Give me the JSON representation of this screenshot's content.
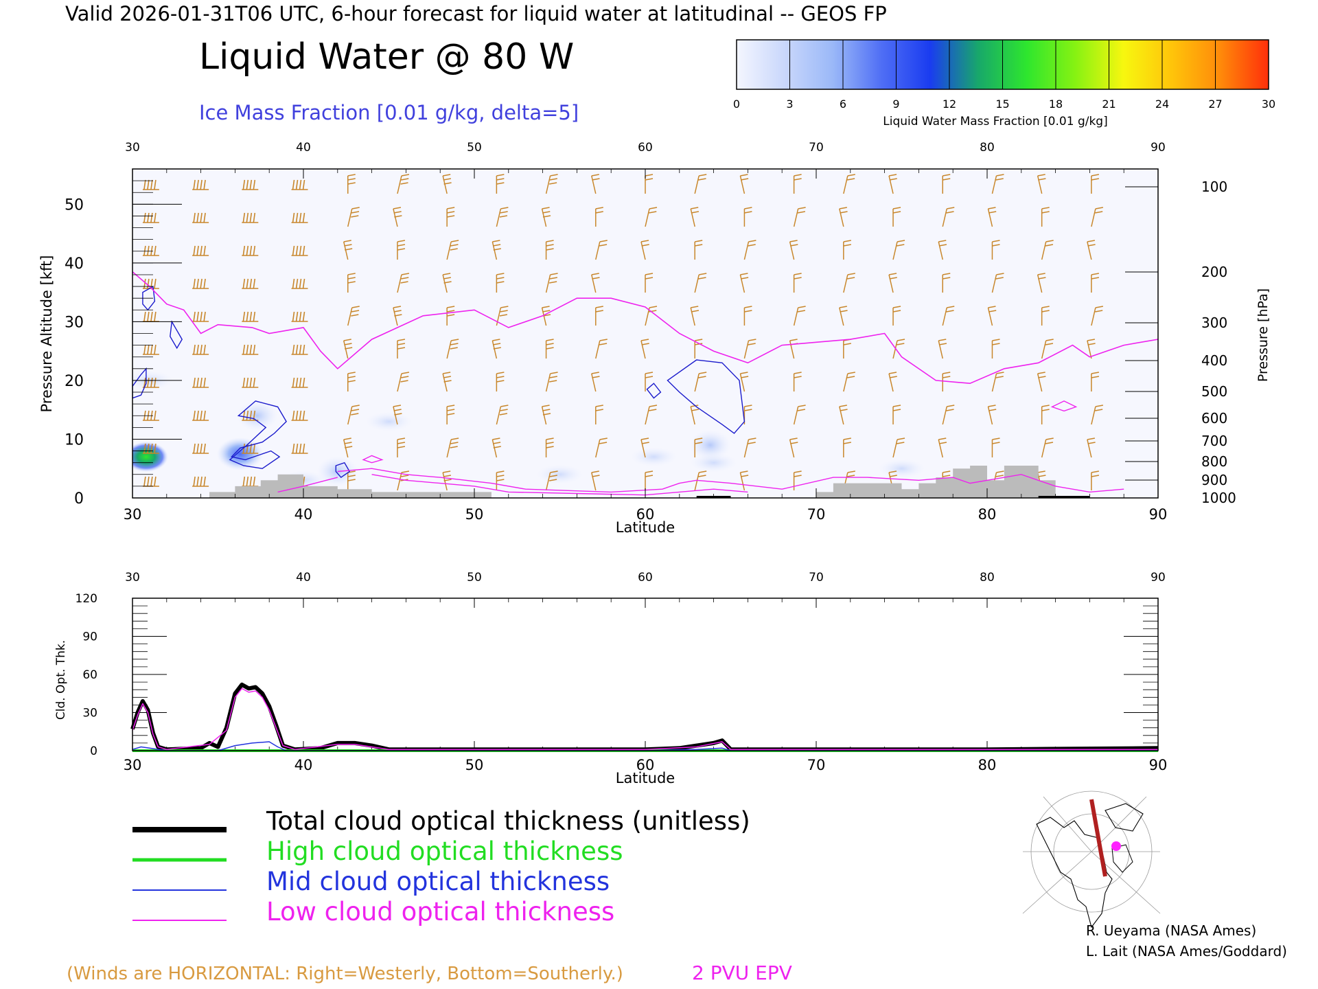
{
  "header": {
    "valid_line": "Valid 2026-01-31T06 UTC, 6-hour forecast for liquid water at latitudinal -- GEOS FP",
    "title": "Liquid Water @ 80  W",
    "subtitle": "Ice Mass Fraction [0.01 g/kg, delta=5]"
  },
  "colorbar": {
    "ticks": [
      "0",
      "3",
      "6",
      "9",
      "12",
      "15",
      "18",
      "21",
      "24",
      "27",
      "30"
    ],
    "colors": [
      "#f4f6ff",
      "#c9d7fb",
      "#9ab8f8",
      "#4f6ef5",
      "#1a3cf0",
      "#18a86a",
      "#2ee62e",
      "#86f212",
      "#f7f70f",
      "#ffc40a",
      "#ff8a0a",
      "#ff2f0a"
    ],
    "label": "Liquid Water Mass Fraction [0.01 g/kg]"
  },
  "top_panel": {
    "left_axis_label": "Pressure Altitude [kft]",
    "right_axis_label": "Pressure [hPa]",
    "x_label": "Latitude",
    "x_ticks": [
      "30",
      "40",
      "50",
      "60",
      "70",
      "80",
      "90"
    ],
    "left_ticks": [
      "0",
      "10",
      "20",
      "30",
      "40",
      "50"
    ],
    "right_ticks": [
      "100",
      "200",
      "300",
      "400",
      "500",
      "600",
      "700",
      "800",
      "900",
      "1000"
    ]
  },
  "bottom_panel": {
    "y_label": "Cld. Opt. Thk.",
    "x_label": "Latitude",
    "x_ticks": [
      "30",
      "40",
      "50",
      "60",
      "70",
      "80",
      "90"
    ],
    "y_ticks": [
      "0",
      "30",
      "60",
      "90",
      "120"
    ]
  },
  "legend": {
    "items": [
      {
        "label": "Total cloud optical thickness (unitless)",
        "color": "#000000"
      },
      {
        "label": "High cloud optical thickness",
        "color": "#22dd22"
      },
      {
        "label": "Mid cloud optical thickness",
        "color": "#2233dd"
      },
      {
        "label": "Low cloud optical thickness",
        "color": "#ee22ee"
      }
    ]
  },
  "footer": {
    "winds_note": "(Winds are HORIZONTAL: Right=Westerly, Bottom=Southerly.)",
    "epv_note": "2 PVU EPV",
    "credit_1": "R. Ueyama (NASA Ames)",
    "credit_2": "L. Lait (NASA Ames/Goddard)"
  },
  "colors": {
    "wind": "#c8862a",
    "epv": "#ee22ee",
    "ice": "#1a1acc",
    "terrain": "#bbbbbb",
    "title_blue": "#4040dd",
    "footer_orange": "#d89a40"
  },
  "chart_data": [
    {
      "type": "heatmap",
      "title": "Liquid Water @ 80  W",
      "xlabel": "Latitude",
      "ylabel": "Pressure Altitude [kft]",
      "xlim": [
        30,
        90
      ],
      "ylim": [
        0,
        56
      ],
      "liquid_water_blobs": [
        {
          "lat": 30.8,
          "alt": 7,
          "value": 15
        },
        {
          "lat": 36.3,
          "alt": 7.5,
          "value": 9
        },
        {
          "lat": 37.3,
          "alt": 14,
          "value": 3
        },
        {
          "lat": 42.0,
          "alt": 4.5,
          "value": 3
        },
        {
          "lat": 63.8,
          "alt": 9,
          "value": 3
        }
      ],
      "epv_2pvu_line": {
        "name": "2 PVU EPV",
        "lat": [
          30,
          31,
          32,
          33,
          34,
          35,
          37,
          38,
          40,
          41,
          42,
          44,
          47,
          50,
          52,
          54,
          56,
          58,
          60,
          62,
          64,
          66,
          68,
          70,
          72,
          74,
          75,
          77,
          79,
          81,
          83,
          85,
          86,
          88,
          90
        ],
        "alt_kft": [
          38.5,
          36,
          33,
          32,
          28,
          29.5,
          29,
          28,
          29,
          25,
          22,
          27,
          31,
          32,
          29,
          31,
          34,
          34,
          32.5,
          28,
          25,
          23,
          26,
          26.5,
          27,
          28,
          24,
          20,
          19.5,
          22,
          23,
          26,
          24,
          26,
          27
        ]
      },
      "terrain_kft": {
        "lat": [
          34.5,
          36,
          37.5,
          38.5,
          40,
          42,
          44,
          47,
          51,
          70,
          71,
          72,
          73,
          74,
          75,
          76,
          77,
          78,
          79,
          80,
          81,
          82,
          83
        ],
        "alt": [
          1,
          2,
          3,
          4,
          2,
          1.5,
          1,
          1,
          0,
          1,
          2.5,
          2.5,
          2.5,
          2.5,
          1.5,
          2.5,
          3.5,
          5,
          5.5,
          3,
          5.5,
          5.5,
          3
        ]
      }
    },
    {
      "type": "line",
      "xlabel": "Latitude",
      "ylabel": "Cld. Opt. Thk.",
      "xlim": [
        30,
        90
      ],
      "ylim": [
        0,
        120
      ],
      "series": [
        {
          "name": "Total cloud optical thickness (unitless)",
          "x": [
            30,
            30.3,
            30.6,
            30.9,
            31.2,
            31.5,
            32,
            34,
            34.5,
            35,
            35.5,
            36,
            36.4,
            36.8,
            37.2,
            37.6,
            38,
            38.4,
            38.8,
            39.5,
            41,
            42,
            43,
            44,
            45,
            50,
            55,
            60,
            62,
            63,
            64,
            64.5,
            65,
            70,
            80,
            90
          ],
          "y": [
            17,
            30,
            39,
            32,
            14,
            3,
            1,
            2,
            6,
            3,
            18,
            45,
            52,
            49,
            50,
            45,
            35,
            20,
            4,
            1,
            2,
            6,
            6,
            4,
            1,
            1,
            1,
            1,
            2,
            4,
            6,
            8,
            1,
            1,
            1,
            2
          ]
        },
        {
          "name": "High cloud optical thickness",
          "x": [
            30,
            40,
            50,
            60,
            70,
            80,
            90
          ],
          "y": [
            0,
            0,
            0,
            0,
            0,
            0,
            0
          ]
        },
        {
          "name": "Mid cloud optical thickness",
          "x": [
            30,
            30.5,
            31,
            32,
            35,
            36,
            37,
            38,
            38.5,
            39,
            45,
            60,
            63,
            64.5,
            65,
            90
          ],
          "y": [
            1,
            3,
            2,
            0,
            0,
            4,
            6,
            7,
            3,
            0,
            0,
            0,
            1,
            2,
            0,
            0
          ]
        },
        {
          "name": "Low cloud optical thickness",
          "x": [
            30,
            30.3,
            30.6,
            30.9,
            31.2,
            31.5,
            32,
            34.5,
            35.5,
            36,
            36.4,
            36.8,
            37.2,
            37.6,
            38,
            38.4,
            38.8,
            39.5,
            42,
            43,
            45,
            60,
            63,
            64.5,
            65,
            90
          ],
          "y": [
            16,
            28,
            37,
            30,
            13,
            3,
            1,
            5,
            16,
            42,
            49,
            46,
            47,
            42,
            32,
            18,
            4,
            1,
            5,
            5,
            1,
            1,
            3,
            7,
            1,
            1
          ]
        }
      ]
    }
  ]
}
